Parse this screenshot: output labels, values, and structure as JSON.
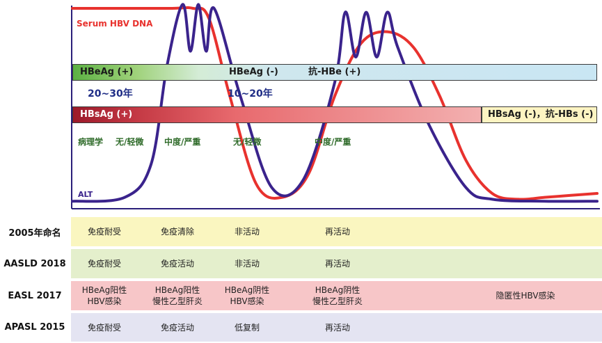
{
  "chart_data": {
    "type": "line",
    "title": "",
    "xlabel": "",
    "ylabel": "",
    "series": [
      {
        "name": "Serum HBV DNA",
        "color": "#e8322e",
        "x": [
          0,
          18,
          23,
          26,
          30,
          35,
          40,
          45,
          50,
          55,
          60,
          65,
          70,
          75,
          80,
          85,
          90,
          95,
          100
        ],
        "values": [
          100,
          100,
          100,
          95,
          55,
          10,
          3,
          15,
          55,
          82,
          88,
          80,
          55,
          22,
          5,
          2,
          3,
          4,
          5
        ]
      },
      {
        "name": "ALT",
        "color": "#3a238c",
        "x": [
          0,
          10,
          15,
          18,
          21,
          22.5,
          24,
          25.5,
          27,
          32,
          38,
          44,
          50,
          52,
          54,
          56,
          58,
          60,
          62,
          68,
          75,
          80,
          90,
          100
        ],
        "values": [
          1,
          3,
          20,
          70,
          102,
          78,
          102,
          78,
          100,
          55,
          8,
          12,
          62,
          98,
          75,
          98,
          75,
          98,
          80,
          40,
          8,
          2,
          1,
          1
        ]
      }
    ],
    "legend_labels": {
      "dna": "Serum HBV DNA",
      "alt": "ALT"
    }
  },
  "bars": {
    "hbeag_pos": "HBeAg (+)",
    "hbeag_neg": "HBeAg (-)",
    "anti_hbe_pos": "抗-HBe (+)",
    "hbsag_pos": "HBsAg (+)",
    "hbsag_neg": "HBsAg (-)，抗-HBs (-)"
  },
  "durations": {
    "first": "20~30年",
    "second": "10~20年"
  },
  "pathology": {
    "label": "病理学",
    "values": [
      "无/轻微",
      "中度/严重",
      "无/轻微",
      "中度/严重"
    ]
  },
  "rows": [
    {
      "name": "2005年命名",
      "color": "#faf6c0",
      "cells": [
        "免疫耐受",
        "免疫清除",
        "非活动",
        "再活动",
        ""
      ]
    },
    {
      "name": "AASLD 2018",
      "color": "#e4efcc",
      "cells": [
        "免疫耐受",
        "免疫活动",
        "非活动",
        "再活动",
        ""
      ]
    },
    {
      "name": "EASL 2017",
      "color": "#f7c6c8",
      "cells": [
        "HBeAg阳性\nHBV感染",
        "HBeAg阳性\n慢性乙型肝炎",
        "HBeAg阴性\nHBV感染",
        "HBeAg阴性\n慢性乙型肝炎",
        "隐匿性HBV感染"
      ]
    },
    {
      "name": "APASL 2015",
      "color": "#e4e4f2",
      "cells": [
        "免疫耐受",
        "免疫活动",
        "低复制",
        "再活动",
        ""
      ]
    }
  ],
  "colors": {
    "dna": "#e8322e",
    "alt": "#3a238c",
    "axis": "#2a1f7a",
    "years": "#1f2d86",
    "pathology": "#2f6b2a"
  }
}
